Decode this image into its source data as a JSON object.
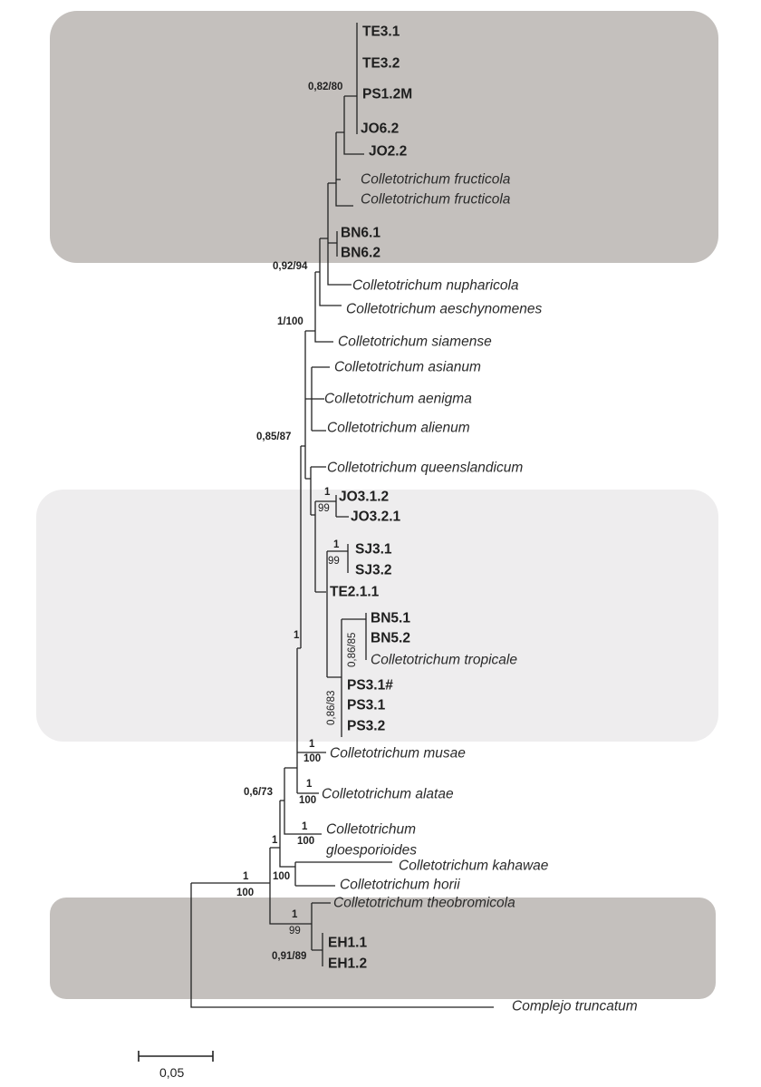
{
  "highlight_colors": {
    "dark_group": "#c4c0bd",
    "light_group": "#eeedee"
  },
  "tips": [
    {
      "label": "TE3.1",
      "style": "bold"
    },
    {
      "label": "TE3.2",
      "style": "bold"
    },
    {
      "label": "PS1.2M",
      "style": "bold"
    },
    {
      "label": "JO6.2",
      "style": "bold"
    },
    {
      "label": "JO2.2",
      "style": "bold"
    },
    {
      "label": "Colletotrichum fructicola",
      "style": "italic"
    },
    {
      "label": "Colletotrichum fructicola",
      "style": "italic"
    },
    {
      "label": "BN6.1",
      "style": "bold"
    },
    {
      "label": "BN6.2",
      "style": "bold"
    },
    {
      "label": "Colletotrichum nupharicola",
      "style": "italic"
    },
    {
      "label": "Colletotrichum aeschynomenes",
      "style": "italic"
    },
    {
      "label": "Colletotrichum siamense",
      "style": "italic"
    },
    {
      "label": "Colletotrichum asianum",
      "style": "italic"
    },
    {
      "label": "Colletotrichum aenigma",
      "style": "italic"
    },
    {
      "label": "Colletotrichum alienum",
      "style": "italic"
    },
    {
      "label": "Colletotrichum queenslandicum",
      "style": "italic"
    },
    {
      "label": "JO3.1.2",
      "style": "bold"
    },
    {
      "label": "JO3.2.1",
      "style": "bold"
    },
    {
      "label": "SJ3.1",
      "style": "bold"
    },
    {
      "label": "SJ3.2",
      "style": "bold"
    },
    {
      "label": "TE2.1.1",
      "style": "bold"
    },
    {
      "label": "BN5.1",
      "style": "bold"
    },
    {
      "label": "BN5.2",
      "style": "bold"
    },
    {
      "label": "Colletotrichum tropicale",
      "style": "italic"
    },
    {
      "label": "PS3.1#",
      "style": "bold"
    },
    {
      "label": "PS3.1",
      "style": "bold"
    },
    {
      "label": "PS3.2",
      "style": "bold"
    },
    {
      "label": "Colletotrichum musae",
      "style": "italic"
    },
    {
      "label": "Colletotrichum alatae",
      "style": "italic"
    },
    {
      "label": "Colletotrichum",
      "style": "italic"
    },
    {
      "label": "gloesporioides",
      "style": "italic"
    },
    {
      "label": "Colletotrichum kahawae",
      "style": "italic"
    },
    {
      "label": "Colletotrichum horii",
      "style": "italic"
    },
    {
      "label": "Colletotrichum theobromicola",
      "style": "italic"
    },
    {
      "label": "EH1.1",
      "style": "bold"
    },
    {
      "label": "EH1.2",
      "style": "bold"
    },
    {
      "label": "Complejo truncatum",
      "style": "italic"
    }
  ],
  "supports": [
    "0,82/80",
    "0,92/94",
    "1/100",
    "0,85/87",
    "1",
    "99",
    "1",
    "99",
    "0,86/85",
    "0,86/83",
    "1",
    "1",
    "100",
    "1",
    "100",
    "0,6/73",
    "1",
    "100",
    "1",
    "100",
    "1",
    "100",
    "1",
    "99",
    "0,91/89"
  ],
  "scale_bar": {
    "label": "0,05"
  }
}
